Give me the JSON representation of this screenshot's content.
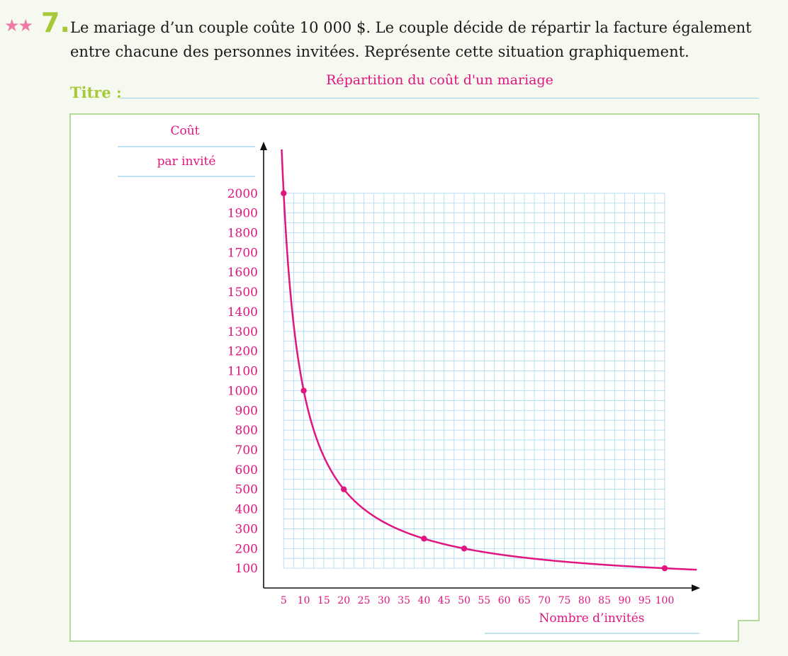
{
  "question": {
    "stars": "★★",
    "number": "7.",
    "text_line1": "Le mariage d’un couple coûte 10 000 $. Le couple décide de répartir la facture également",
    "text_line2": "entre chacune des personnes invitées. Représente cette situation graphiquement."
  },
  "title_field": {
    "label": "Titre :",
    "value": "Répartition du coût d'un mariage"
  },
  "chart_data": {
    "type": "line",
    "ylabel_line1": "Coût",
    "ylabel_line2": "par invité",
    "xlabel": "Nombre d’invités",
    "x_ticks": [
      5,
      10,
      15,
      20,
      25,
      30,
      35,
      40,
      45,
      50,
      55,
      60,
      65,
      70,
      75,
      80,
      85,
      90,
      95,
      100
    ],
    "y_ticks": [
      100,
      200,
      300,
      400,
      500,
      600,
      700,
      800,
      900,
      1000,
      1100,
      1200,
      1300,
      1400,
      1500,
      1600,
      1700,
      1800,
      1900,
      2000
    ],
    "xlim": [
      0,
      100
    ],
    "ylim": [
      0,
      2000
    ],
    "grid": true,
    "series": [
      {
        "function": "y = 10000 / x",
        "points": [
          {
            "x": 5,
            "y": 2000
          },
          {
            "x": 10,
            "y": 1000
          },
          {
            "x": 20,
            "y": 500
          },
          {
            "x": 40,
            "y": 250
          },
          {
            "x": 50,
            "y": 200
          },
          {
            "x": 100,
            "y": 100
          }
        ]
      }
    ],
    "colors": {
      "curve": "#e0157f",
      "grid": "#a9d8f0",
      "labels": "#e0157f",
      "frame": "#9bcf7f"
    }
  }
}
